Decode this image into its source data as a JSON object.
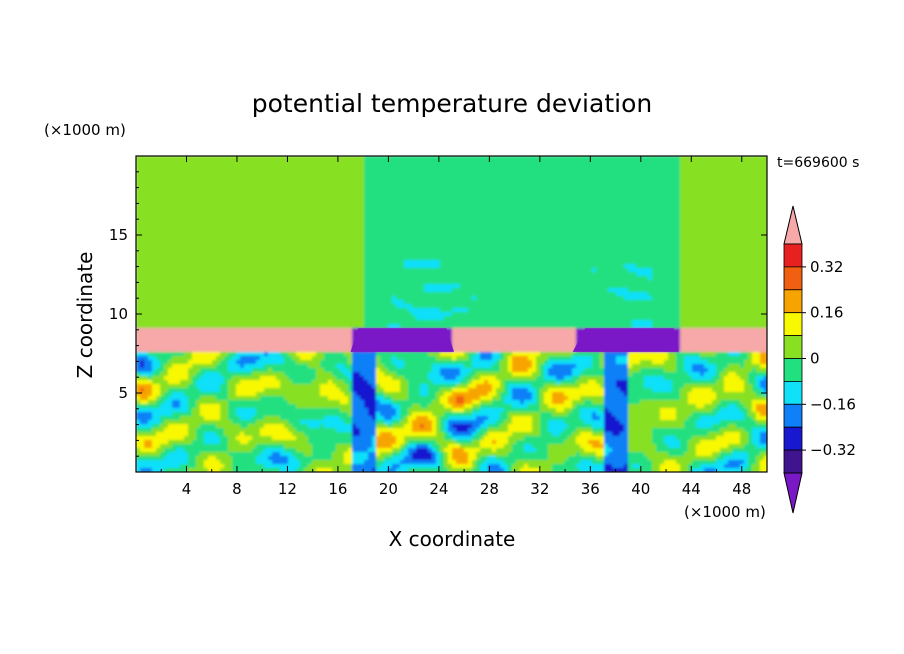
{
  "chart_data": {
    "type": "heatmap",
    "title": "potential temperature deviation",
    "xlabel": "X coordinate",
    "ylabel": "Z coordinate",
    "x_unit": "(×1000 m)",
    "y_unit": "(×1000 m)",
    "time_label": "t=669600 s",
    "xlim": [
      0,
      50
    ],
    "ylim": [
      0,
      20
    ],
    "x_ticks": [
      4,
      8,
      12,
      16,
      20,
      24,
      28,
      32,
      36,
      40,
      44,
      48
    ],
    "y_ticks": [
      5,
      10,
      15
    ],
    "colorbar": {
      "labels": [
        "0.32",
        "0.16",
        "0",
        "-0.16",
        "-0.32"
      ],
      "levels": [
        0.4,
        0.32,
        0.24,
        0.16,
        0.08,
        0,
        -0.08,
        -0.16,
        -0.24,
        -0.32,
        -0.4
      ],
      "colors": [
        "#f7a8a8",
        "#e82020",
        "#f06010",
        "#f8a400",
        "#f8f800",
        "#88e020",
        "#20e080",
        "#10e0f8",
        "#1080f8",
        "#1818d0",
        "#40138f",
        "#7a18c8"
      ],
      "extend": "both"
    },
    "regions": [
      {
        "label": "upper layer, x 0–18 and 43–50, z 9–20",
        "value": 0.04
      },
      {
        "label": "upper layer, x 18–43, z 9–20",
        "value": -0.04
      },
      {
        "label": "inversion band, z 7.6–8.9",
        "value": 0.44
      },
      {
        "label": "cold block, x 17–25, z 7.6–9.1",
        "value": -0.44
      },
      {
        "label": "cold block, x 35–43, z 7.6–9.1",
        "value": -0.44
      },
      {
        "label": "boundary layer, z 0–7.6",
        "value": "mixed -0.44 to 0.44"
      }
    ]
  }
}
